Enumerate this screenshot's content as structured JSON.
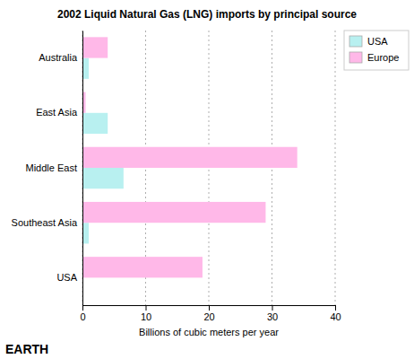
{
  "chart_data": {
    "type": "bar",
    "orientation": "horizontal",
    "title": "2002 Liquid Natural Gas (LNG) imports by principal source",
    "xlabel": "Billions of cubic meters per year",
    "categories": [
      "USA",
      "Southeast Asia",
      "Middle East",
      "East Asia",
      "Australia"
    ],
    "series": [
      {
        "name": "USA",
        "color": "#b8f0f0",
        "values": [
          0.0,
          1.0,
          6.5,
          4.0,
          1.0
        ]
      },
      {
        "name": "Europe",
        "color": "#ffb8e8",
        "values": [
          19.0,
          29.0,
          34.0,
          0.5,
          4.0
        ]
      }
    ],
    "xlim": [
      0,
      40
    ],
    "xticks": [
      0,
      10,
      20,
      30,
      40
    ],
    "grid": true,
    "legend": "upper right",
    "annotations": [
      "EARTH"
    ]
  }
}
